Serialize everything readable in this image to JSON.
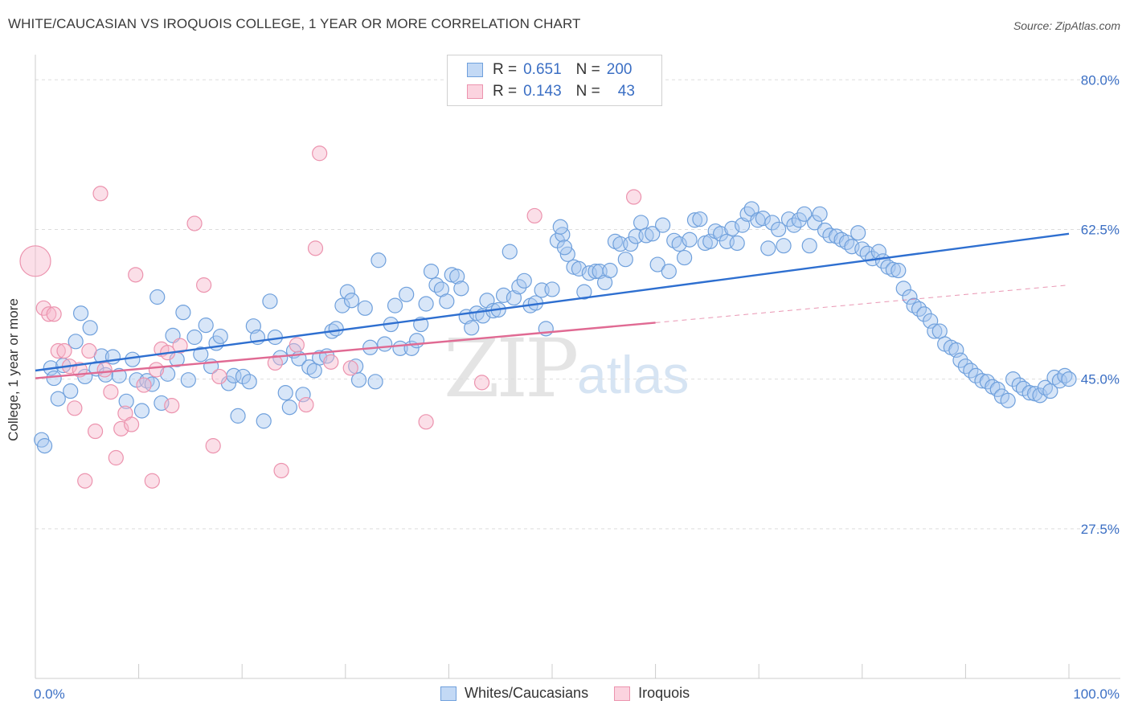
{
  "title": "WHITE/CAUCASIAN VS IROQUOIS COLLEGE, 1 YEAR OR MORE CORRELATION CHART",
  "source": "Source: ZipAtlas.com",
  "watermark": {
    "zip": "ZIP",
    "atlas": "atlas"
  },
  "legend": {
    "rows": [
      {
        "r_label": "R =",
        "r_value": "0.651",
        "n_label": "N =",
        "n_value": "200",
        "color": "#a8c8f0"
      },
      {
        "r_label": "R =",
        "r_value": "0.143",
        "n_label": "N =",
        "n_value": "43",
        "color": "#f7b8cb"
      }
    ]
  },
  "bottom_legend": [
    "Whites/Caucasians",
    "Iroquois"
  ],
  "colors": {
    "blue_fill": "rgba(168,200,240,0.45)",
    "blue_stroke": "#6fa0dc",
    "blue_line": "#2e6fd0",
    "pink_fill": "rgba(247,184,203,0.45)",
    "pink_stroke": "#ec93ae",
    "pink_line": "#e06a93",
    "axis_text": "#3b6fc4",
    "grid": "#dddddd"
  },
  "chart_data": {
    "type": "scatter",
    "title": "WHITE/CAUCASIAN VS IROQUOIS COLLEGE, 1 YEAR OR MORE CORRELATION CHART",
    "xlabel": "",
    "ylabel": "College, 1 year or more",
    "xlim": [
      0,
      100
    ],
    "ylim": [
      10.0,
      82.0
    ],
    "x_tick_labels": [
      "0.0%",
      "100.0%"
    ],
    "y_ticks": [
      27.5,
      45.0,
      62.5,
      80.0
    ],
    "y_tick_labels": [
      "27.5%",
      "45.0%",
      "62.5%",
      "80.0%"
    ],
    "grid": "horizontal dashed",
    "legend_position": "top-center",
    "series": [
      {
        "name": "Whites/Caucasians",
        "trend": {
          "x": [
            0,
            100
          ],
          "y": [
            46.0,
            62.0
          ],
          "style": "solid"
        },
        "points": [
          [
            0.6,
            37.9
          ],
          [
            0.9,
            37.2
          ],
          [
            1.5,
            46.3
          ],
          [
            1.8,
            45.1
          ],
          [
            2.2,
            42.7
          ],
          [
            2.7,
            46.6
          ],
          [
            3.4,
            43.6
          ],
          [
            3.9,
            49.4
          ],
          [
            4.4,
            52.7
          ],
          [
            4.8,
            45.3
          ],
          [
            5.3,
            51.0
          ],
          [
            5.9,
            46.2
          ],
          [
            6.4,
            47.7
          ],
          [
            6.8,
            45.5
          ],
          [
            7.5,
            47.6
          ],
          [
            8.1,
            45.4
          ],
          [
            8.8,
            42.4
          ],
          [
            9.4,
            47.3
          ],
          [
            9.8,
            44.9
          ],
          [
            10.3,
            41.3
          ],
          [
            10.8,
            44.8
          ],
          [
            11.3,
            44.4
          ],
          [
            11.8,
            54.6
          ],
          [
            12.2,
            42.2
          ],
          [
            12.8,
            45.6
          ],
          [
            13.3,
            50.1
          ],
          [
            13.7,
            47.3
          ],
          [
            14.3,
            52.8
          ],
          [
            14.8,
            44.9
          ],
          [
            15.4,
            49.9
          ],
          [
            16.0,
            47.9
          ],
          [
            16.5,
            51.3
          ],
          [
            17.0,
            46.5
          ],
          [
            17.5,
            49.2
          ],
          [
            17.9,
            50.0
          ],
          [
            18.7,
            44.5
          ],
          [
            19.2,
            45.4
          ],
          [
            19.6,
            40.7
          ],
          [
            20.1,
            45.3
          ],
          [
            20.7,
            44.7
          ],
          [
            21.1,
            51.2
          ],
          [
            21.5,
            49.9
          ],
          [
            22.1,
            40.1
          ],
          [
            22.7,
            54.1
          ],
          [
            23.2,
            49.9
          ],
          [
            23.7,
            47.5
          ],
          [
            24.2,
            43.4
          ],
          [
            24.6,
            41.7
          ],
          [
            25.0,
            48.3
          ],
          [
            25.5,
            47.4
          ],
          [
            25.9,
            43.2
          ],
          [
            26.5,
            46.4
          ],
          [
            27.0,
            46.0
          ],
          [
            27.5,
            47.5
          ],
          [
            28.2,
            47.7
          ],
          [
            28.7,
            50.6
          ],
          [
            29.1,
            50.9
          ],
          [
            29.7,
            53.6
          ],
          [
            30.2,
            55.2
          ],
          [
            30.6,
            54.2
          ],
          [
            31.0,
            46.5
          ],
          [
            31.3,
            44.9
          ],
          [
            31.9,
            53.3
          ],
          [
            32.4,
            48.7
          ],
          [
            32.9,
            44.7
          ],
          [
            33.2,
            58.9
          ],
          [
            33.8,
            49.1
          ],
          [
            34.4,
            51.4
          ],
          [
            34.8,
            53.6
          ],
          [
            35.3,
            48.6
          ],
          [
            35.9,
            54.9
          ],
          [
            36.4,
            48.6
          ],
          [
            36.9,
            49.5
          ],
          [
            37.3,
            51.4
          ],
          [
            37.8,
            53.8
          ],
          [
            38.3,
            57.6
          ],
          [
            38.8,
            56.0
          ],
          [
            39.3,
            55.5
          ],
          [
            39.8,
            54.1
          ],
          [
            40.3,
            57.2
          ],
          [
            40.8,
            57.0
          ],
          [
            41.2,
            55.6
          ],
          [
            41.7,
            52.3
          ],
          [
            42.2,
            51.0
          ],
          [
            42.7,
            52.7
          ],
          [
            43.3,
            52.4
          ],
          [
            43.7,
            54.2
          ],
          [
            44.3,
            53.0
          ],
          [
            44.8,
            53.1
          ],
          [
            45.3,
            54.8
          ],
          [
            45.9,
            59.9
          ],
          [
            46.3,
            54.5
          ],
          [
            46.8,
            55.8
          ],
          [
            47.3,
            56.5
          ],
          [
            47.9,
            53.6
          ],
          [
            48.4,
            53.9
          ],
          [
            49.0,
            55.4
          ],
          [
            49.4,
            50.9
          ],
          [
            50.0,
            55.5
          ],
          [
            50.5,
            61.2
          ],
          [
            51.0,
            61.9
          ],
          [
            51.5,
            59.6
          ],
          [
            52.1,
            58.1
          ],
          [
            52.6,
            57.9
          ],
          [
            53.1,
            55.2
          ],
          [
            53.6,
            57.4
          ],
          [
            54.2,
            57.6
          ],
          [
            54.6,
            57.6
          ],
          [
            55.1,
            56.3
          ],
          [
            55.6,
            57.7
          ],
          [
            56.1,
            61.1
          ],
          [
            56.6,
            60.8
          ],
          [
            57.1,
            59.0
          ],
          [
            57.6,
            60.8
          ],
          [
            58.1,
            61.7
          ],
          [
            58.6,
            63.3
          ],
          [
            59.1,
            61.8
          ],
          [
            59.7,
            62.0
          ],
          [
            60.2,
            58.4
          ],
          [
            60.7,
            63.0
          ],
          [
            61.3,
            57.6
          ],
          [
            61.8,
            61.2
          ],
          [
            62.3,
            60.8
          ],
          [
            62.8,
            59.2
          ],
          [
            63.3,
            61.3
          ],
          [
            63.8,
            63.6
          ],
          [
            64.3,
            63.7
          ],
          [
            64.8,
            60.9
          ],
          [
            65.3,
            61.1
          ],
          [
            65.8,
            62.3
          ],
          [
            66.3,
            62.0
          ],
          [
            66.9,
            61.1
          ],
          [
            67.4,
            62.6
          ],
          [
            67.9,
            60.9
          ],
          [
            68.4,
            63.0
          ],
          [
            68.9,
            64.3
          ],
          [
            69.3,
            64.9
          ],
          [
            69.9,
            63.6
          ],
          [
            70.4,
            63.8
          ],
          [
            70.9,
            60.3
          ],
          [
            71.3,
            63.3
          ],
          [
            71.9,
            62.5
          ],
          [
            72.4,
            60.6
          ],
          [
            72.9,
            63.7
          ],
          [
            73.4,
            63.0
          ],
          [
            73.9,
            63.6
          ],
          [
            74.4,
            64.3
          ],
          [
            74.9,
            60.6
          ],
          [
            75.4,
            63.3
          ],
          [
            75.9,
            64.3
          ],
          [
            76.4,
            62.4
          ],
          [
            76.9,
            61.8
          ],
          [
            77.5,
            61.7
          ],
          [
            78.0,
            61.3
          ],
          [
            78.5,
            61.0
          ],
          [
            79.0,
            60.5
          ],
          [
            79.6,
            62.1
          ],
          [
            80.0,
            60.2
          ],
          [
            80.5,
            59.7
          ],
          [
            81.0,
            59.1
          ],
          [
            81.6,
            59.9
          ],
          [
            82.0,
            58.8
          ],
          [
            82.5,
            58.1
          ],
          [
            83.0,
            57.8
          ],
          [
            83.5,
            57.7
          ],
          [
            84.0,
            55.6
          ],
          [
            84.6,
            54.6
          ],
          [
            85.0,
            53.6
          ],
          [
            85.5,
            53.2
          ],
          [
            86.0,
            52.6
          ],
          [
            86.6,
            51.8
          ],
          [
            87.0,
            50.6
          ],
          [
            87.5,
            50.6
          ],
          [
            88.0,
            49.1
          ],
          [
            88.6,
            48.7
          ],
          [
            89.1,
            48.4
          ],
          [
            89.5,
            47.2
          ],
          [
            90.0,
            46.5
          ],
          [
            90.5,
            46.0
          ],
          [
            91.0,
            45.4
          ],
          [
            91.6,
            44.8
          ],
          [
            92.1,
            44.7
          ],
          [
            92.6,
            44.1
          ],
          [
            93.1,
            43.8
          ],
          [
            93.5,
            43.0
          ],
          [
            94.1,
            42.5
          ],
          [
            94.6,
            45.0
          ],
          [
            95.2,
            44.3
          ],
          [
            95.6,
            43.9
          ],
          [
            96.2,
            43.4
          ],
          [
            96.7,
            43.3
          ],
          [
            97.2,
            43.1
          ],
          [
            97.7,
            44.0
          ],
          [
            98.2,
            43.6
          ],
          [
            98.6,
            45.2
          ],
          [
            99.1,
            44.8
          ],
          [
            99.6,
            45.4
          ],
          [
            100.0,
            45.0
          ],
          [
            50.8,
            62.8
          ],
          [
            51.2,
            60.4
          ]
        ]
      },
      {
        "name": "Iroquois",
        "trend": {
          "x": [
            0,
            60
          ],
          "y": [
            45.1,
            51.6
          ],
          "style": "solid",
          "dashed_extension": {
            "x": [
              60,
              100
            ],
            "y": [
              51.6,
              56.0
            ]
          }
        },
        "points": [
          [
            0.0,
            58.8
          ],
          [
            0.8,
            53.3
          ],
          [
            1.3,
            52.6
          ],
          [
            1.8,
            52.6
          ],
          [
            2.2,
            48.3
          ],
          [
            2.8,
            48.3
          ],
          [
            3.3,
            46.5
          ],
          [
            3.8,
            41.6
          ],
          [
            4.3,
            46.1
          ],
          [
            4.8,
            33.1
          ],
          [
            5.2,
            48.3
          ],
          [
            5.8,
            38.9
          ],
          [
            6.3,
            66.7
          ],
          [
            6.7,
            46.1
          ],
          [
            7.3,
            43.5
          ],
          [
            7.8,
            35.8
          ],
          [
            8.3,
            39.2
          ],
          [
            8.7,
            41.0
          ],
          [
            9.3,
            39.7
          ],
          [
            9.7,
            57.2
          ],
          [
            10.5,
            44.3
          ],
          [
            11.3,
            33.1
          ],
          [
            11.7,
            46.1
          ],
          [
            12.2,
            48.5
          ],
          [
            12.8,
            48.1
          ],
          [
            13.2,
            41.9
          ],
          [
            14.0,
            48.9
          ],
          [
            15.4,
            63.2
          ],
          [
            16.3,
            56.0
          ],
          [
            17.2,
            37.2
          ],
          [
            17.8,
            45.3
          ],
          [
            23.2,
            46.9
          ],
          [
            23.8,
            34.3
          ],
          [
            25.3,
            49.0
          ],
          [
            26.2,
            42.0
          ],
          [
            27.1,
            60.3
          ],
          [
            27.5,
            71.4
          ],
          [
            28.6,
            47.0
          ],
          [
            30.5,
            46.3
          ],
          [
            37.8,
            40.0
          ],
          [
            43.2,
            44.6
          ],
          [
            48.3,
            64.1
          ],
          [
            57.9,
            66.3
          ]
        ]
      }
    ]
  }
}
